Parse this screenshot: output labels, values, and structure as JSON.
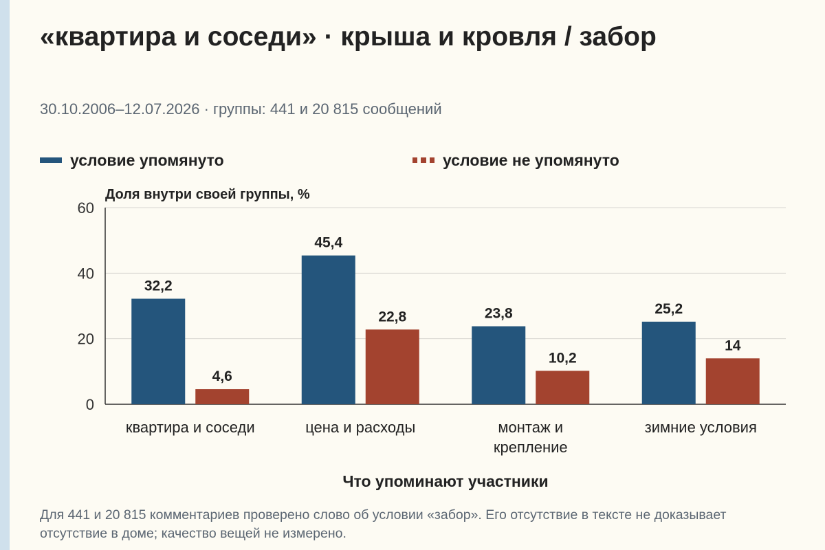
{
  "title": "«квартира и соседи» · крыша и кровля / забор",
  "subtitle": "30.10.2006–12.07.2026 · группы: 441 и 20 815 сообщений",
  "note": "Для 441 и 20 815 комментариев проверено слово об условии «забор». Его отсутствие в тексте не доказывает отсутствие в доме; качество вещей не измерено.",
  "colors": {
    "mentioned": "#24557c",
    "not_mentioned": "#a3432f"
  },
  "chart_data": {
    "type": "bar",
    "categories": [
      "квартира и соседи",
      "цена и расходы",
      "монтаж и крепление",
      "зимние условия"
    ],
    "category_lines": [
      [
        "квартира и соседи"
      ],
      [
        "цена и расходы"
      ],
      [
        "монтаж и",
        "крепление"
      ],
      [
        "зимние условия"
      ]
    ],
    "series": [
      {
        "name": "условие упомянуто",
        "values": [
          32.2,
          45.4,
          23.8,
          25.2
        ],
        "labels": [
          "32,2",
          "45,4",
          "23,8",
          "25,2"
        ]
      },
      {
        "name": "условие не упомянуто",
        "values": [
          4.6,
          22.8,
          10.2,
          14
        ],
        "labels": [
          "4,6",
          "22,8",
          "10,2",
          "14"
        ]
      }
    ],
    "ylabel": "Доля внутри своей группы, %",
    "xlabel": "Что упоминают участники",
    "ylim": [
      0,
      60
    ],
    "yticks": [
      0,
      20,
      40,
      60
    ],
    "grid": true,
    "legend_position": "top"
  }
}
